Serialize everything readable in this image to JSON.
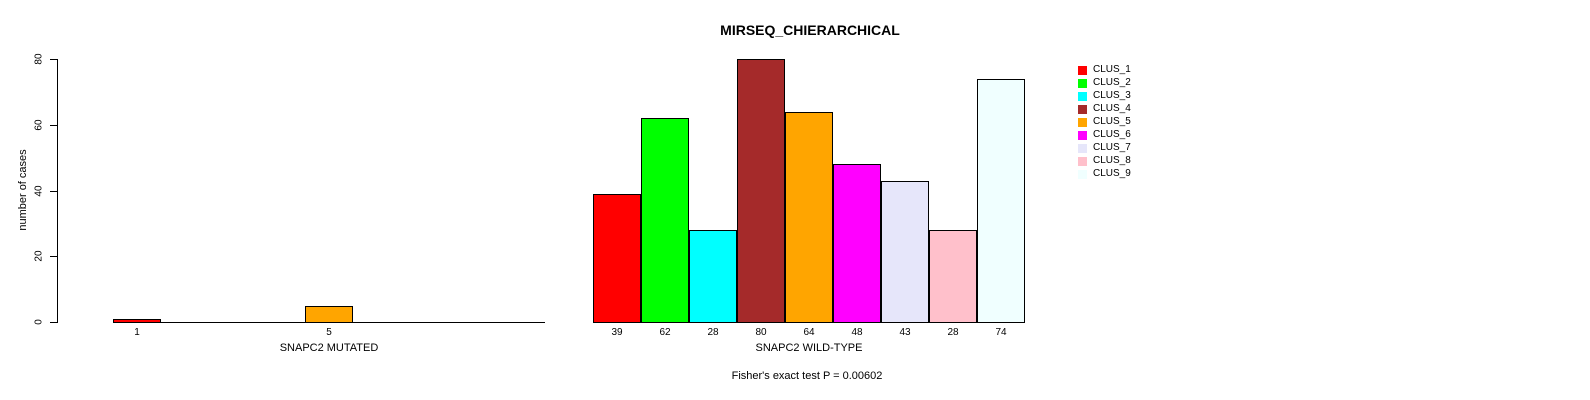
{
  "title": "MIRSEQ_CHIERARCHICAL",
  "chart_data": {
    "type": "bar",
    "title": "MIRSEQ_CHIERARCHICAL",
    "ylabel": "number of cases",
    "xlabel": "",
    "ylim": [
      0,
      80
    ],
    "yticks": [
      0,
      20,
      40,
      60,
      80
    ],
    "grid": false,
    "legend_position": "right",
    "legend": [
      "CLUS_1",
      "CLUS_2",
      "CLUS_3",
      "CLUS_4",
      "CLUS_5",
      "CLUS_6",
      "CLUS_7",
      "CLUS_8",
      "CLUS_9"
    ],
    "colors": [
      "#FF0000",
      "#00FF00",
      "#00FFFF",
      "#A52A2A",
      "#FFA500",
      "#FF00FF",
      "#E6E6FA",
      "#FFC0CB",
      "#F0FFFF"
    ],
    "groups": [
      {
        "label": "SNAPC2 MUTATED",
        "values": [
          1,
          0,
          0,
          0,
          5,
          0,
          0,
          0,
          0
        ]
      },
      {
        "label": "SNAPC2 WILD-TYPE",
        "values": [
          39,
          62,
          28,
          80,
          64,
          48,
          43,
          28,
          74
        ]
      }
    ],
    "annotation": "Fisher's exact test P = 0.00602"
  }
}
